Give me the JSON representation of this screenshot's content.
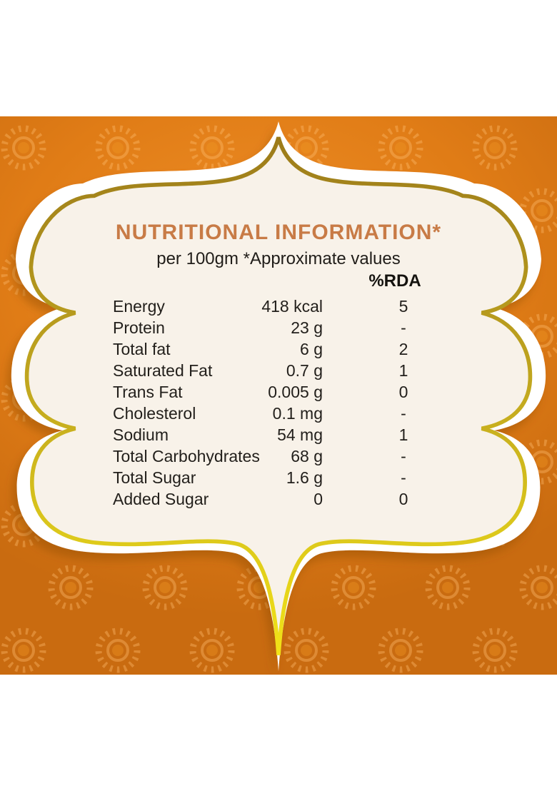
{
  "page": {
    "background_color": "#ffffff",
    "band_color": "#E07C16",
    "pattern_ray_color": "#FFBE6E",
    "pattern_dot_color": "#EE9422"
  },
  "frame": {
    "outer_fill": "#FFFFFF",
    "inner_fill": "#F8F2E9",
    "gold_border_top": "#9C7B1A",
    "gold_border_bottom": "#F2E318",
    "title_color": "#C87B46"
  },
  "header": {
    "title": "NUTRITIONAL INFORMATION*",
    "subtitle": "per 100gm *Approximate values",
    "rda_column_header": "%RDA"
  },
  "table": {
    "rows": [
      {
        "label": "Energy",
        "value": "418 kcal",
        "rda": "5"
      },
      {
        "label": "Protein",
        "value": "23 g",
        "rda": "-"
      },
      {
        "label": "Total fat",
        "value": "6 g",
        "rda": "2"
      },
      {
        "label": "Saturated Fat",
        "value": "0.7 g",
        "rda": "1"
      },
      {
        "label": "Trans Fat",
        "value": "0.005 g",
        "rda": "0"
      },
      {
        "label": "Cholesterol",
        "value": "0.1 mg",
        "rda": "-"
      },
      {
        "label": "Sodium",
        "value": "54 mg",
        "rda": "1"
      },
      {
        "label": "Total Carbohydrates",
        "value": "68 g",
        "rda": "-"
      },
      {
        "label": "Total Sugar",
        "value": "1.6 g",
        "rda": "-"
      },
      {
        "label": "Added  Sugar",
        "value": "0",
        "rda": "0"
      }
    ]
  }
}
